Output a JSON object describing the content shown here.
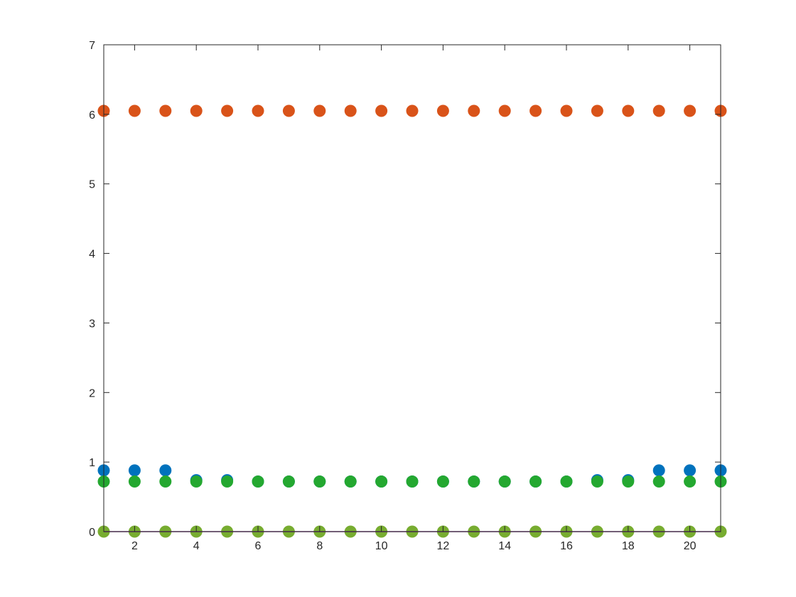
{
  "chart_data": {
    "type": "scatter",
    "title": "",
    "xlabel": "",
    "ylabel": "",
    "xlim": [
      1,
      21
    ],
    "ylim": [
      0,
      7
    ],
    "grid": false,
    "box": true,
    "x_ticks": [
      2,
      4,
      6,
      8,
      10,
      12,
      14,
      16,
      18,
      20
    ],
    "y_ticks": [
      0,
      1,
      2,
      3,
      4,
      5,
      6,
      7
    ],
    "x": [
      1,
      2,
      3,
      4,
      5,
      6,
      7,
      8,
      9,
      10,
      11,
      12,
      13,
      14,
      15,
      16,
      17,
      18,
      19,
      20,
      21
    ],
    "series": [
      {
        "color": "#0072BD",
        "values": [
          0.88,
          0.88,
          0.88,
          0.74,
          0.74,
          0.72,
          0.72,
          0.72,
          0.72,
          0.72,
          0.72,
          0.72,
          0.72,
          0.72,
          0.72,
          0.72,
          0.74,
          0.74,
          0.88,
          0.88,
          0.88
        ]
      },
      {
        "color": "#D95319",
        "values": [
          6.05,
          6.05,
          6.05,
          6.05,
          6.05,
          6.05,
          6.05,
          6.05,
          6.05,
          6.05,
          6.05,
          6.05,
          6.05,
          6.05,
          6.05,
          6.05,
          6.05,
          6.05,
          6.05,
          6.05,
          6.05
        ]
      },
      {
        "color": "#77AC30",
        "values": [
          0,
          0,
          0,
          0,
          0,
          0,
          0,
          0,
          0,
          0,
          0,
          0,
          0,
          0,
          0,
          0,
          0,
          0,
          0,
          0,
          0
        ]
      },
      {
        "color": "#7E2F8E",
        "values": [
          0,
          0,
          0,
          0,
          0,
          0,
          0,
          0,
          0,
          0,
          0,
          0,
          0,
          0,
          0,
          0,
          0,
          0,
          0,
          0,
          0
        ],
        "style": "line"
      },
      {
        "color": "#24A830",
        "values": [
          0.72,
          0.72,
          0.72,
          0.72,
          0.72,
          0.72,
          0.72,
          0.72,
          0.72,
          0.72,
          0.72,
          0.72,
          0.72,
          0.72,
          0.72,
          0.72,
          0.72,
          0.72,
          0.72,
          0.72,
          0.72
        ]
      }
    ]
  }
}
